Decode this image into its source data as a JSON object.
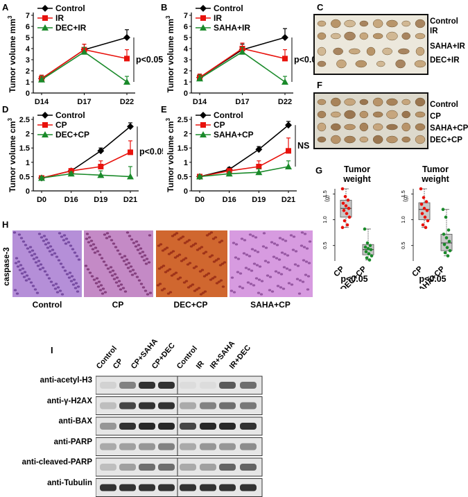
{
  "panels": {
    "A": {
      "letter": "A",
      "ylabel": "Tumor volume mm",
      "ylabel_sup": "3",
      "ptext": "p<0.05"
    },
    "B": {
      "letter": "B",
      "ylabel": "Tumor volume mm",
      "ylabel_sup": "3",
      "ptext": "p<0.05"
    },
    "C": {
      "letter": "C",
      "rows": [
        "Control",
        "IR",
        "SAHA+IR",
        "DEC+IR"
      ]
    },
    "D": {
      "letter": "D",
      "ylabel": "Tumor volume cm",
      "ylabel_sup": "3",
      "ptext": "p<0.05"
    },
    "E": {
      "letter": "E",
      "ylabel": "Tumor volume cm",
      "ylabel_sup": "3",
      "ptext": "NS"
    },
    "F": {
      "letter": "F",
      "rows": [
        "Control",
        "CP",
        "SAHA+CP",
        "DEC+CP"
      ]
    },
    "G": {
      "letter": "G",
      "title1": "Tumor",
      "title2": "weight",
      "unit": "(g)",
      "ptext": "p<0.05"
    },
    "H": {
      "letter": "H",
      "side_label": "caspase-3",
      "captions": [
        "Control",
        "CP",
        "DEC+CP",
        "SAHA+CP"
      ]
    },
    "I": {
      "letter": "I",
      "cols_left": [
        "Control",
        "CP",
        "CP+SAHA",
        "CP+DEC"
      ],
      "cols_right": [
        "Control",
        "IR",
        "IR+SAHA",
        "IR+DEC"
      ],
      "rows": [
        "anti-acetyl-H3",
        "anti-γ-H2AX",
        "anti-BAX",
        "anti-PARP",
        "anti-cleaved-PARP",
        "anti-Tubulin"
      ]
    }
  },
  "colors": {
    "control": "#000000",
    "treat": "#e8120c",
    "combo": "#1a8a2a",
    "box": "#c8c8c8"
  },
  "chart_data": [
    {
      "id": "A",
      "type": "line",
      "x": [
        "D14",
        "D17",
        "D22"
      ],
      "ylim": [
        0,
        7
      ],
      "yticks": [
        0,
        1,
        2,
        3,
        4,
        5,
        6,
        7
      ],
      "series": [
        {
          "name": "Control",
          "values": [
            1.3,
            3.9,
            5.0
          ],
          "err": [
            0.3,
            0.5,
            0.7
          ]
        },
        {
          "name": "IR",
          "values": [
            1.3,
            3.9,
            3.1
          ],
          "err": [
            0.3,
            0.5,
            0.8
          ]
        },
        {
          "name": "DEC+IR",
          "values": [
            1.2,
            3.7,
            1.0
          ],
          "err": [
            0.3,
            0.4,
            0.5
          ]
        }
      ]
    },
    {
      "id": "B",
      "type": "line",
      "x": [
        "D14",
        "D17",
        "D22"
      ],
      "ylim": [
        0,
        7
      ],
      "yticks": [
        0,
        1,
        2,
        3,
        4,
        5,
        6,
        7
      ],
      "series": [
        {
          "name": "Control",
          "values": [
            1.4,
            3.9,
            5.0
          ],
          "err": [
            0.3,
            0.5,
            0.8
          ]
        },
        {
          "name": "IR",
          "values": [
            1.4,
            4.0,
            3.1
          ],
          "err": [
            0.3,
            0.5,
            0.8
          ]
        },
        {
          "name": "SAHA+IR",
          "values": [
            1.3,
            3.7,
            1.0
          ],
          "err": [
            0.3,
            0.4,
            0.5
          ]
        }
      ]
    },
    {
      "id": "D",
      "type": "line",
      "x": [
        "D0",
        "D16",
        "D19",
        "D21"
      ],
      "ylim": [
        0,
        2.5
      ],
      "yticks": [
        0,
        0.5,
        1,
        1.5,
        2,
        2.5
      ],
      "yticklabels": [
        "0",
        "0.5",
        "1",
        "1.5",
        "2",
        "2.5"
      ],
      "series": [
        {
          "name": "Control",
          "values": [
            0.45,
            0.7,
            1.4,
            2.25
          ],
          "err": [
            0.05,
            0.07,
            0.1,
            0.13
          ]
        },
        {
          "name": "CP",
          "values": [
            0.45,
            0.7,
            0.85,
            1.35
          ],
          "err": [
            0.05,
            0.07,
            0.2,
            0.4
          ]
        },
        {
          "name": "DEC+CP",
          "values": [
            0.45,
            0.6,
            0.55,
            0.5
          ],
          "err": [
            0.05,
            0.06,
            0.15,
            0.35
          ]
        }
      ]
    },
    {
      "id": "E",
      "type": "line",
      "x": [
        "D0",
        "D16",
        "D19",
        "D21"
      ],
      "ylim": [
        0,
        2.5
      ],
      "yticks": [
        0,
        0.5,
        1,
        1.5,
        2,
        2.5
      ],
      "yticklabels": [
        "0",
        "0.5",
        "1",
        "1.5",
        "2",
        "2.5"
      ],
      "series": [
        {
          "name": "Control",
          "values": [
            0.5,
            0.75,
            1.45,
            2.3
          ],
          "err": [
            0.05,
            0.07,
            0.1,
            0.13
          ]
        },
        {
          "name": "CP",
          "values": [
            0.5,
            0.7,
            0.85,
            1.4
          ],
          "err": [
            0.05,
            0.07,
            0.2,
            0.45
          ]
        },
        {
          "name": "SAHA+CP",
          "values": [
            0.5,
            0.6,
            0.65,
            0.85
          ],
          "err": [
            0.05,
            0.06,
            0.12,
            0.2
          ]
        }
      ]
    },
    {
      "id": "G1",
      "type": "box",
      "categories": [
        "CP",
        "DEC+CP"
      ],
      "ylim": [
        0.2,
        1.6
      ],
      "yticks": [
        0.5,
        1.0,
        1.5
      ],
      "yticklabels": [
        "0.5",
        "1.0",
        "1.5"
      ],
      "groups": [
        {
          "name": "CP",
          "q1": 1.05,
          "median": 1.22,
          "q3": 1.38,
          "min": 0.85,
          "max": 1.6,
          "points": [
            1.6,
            1.45,
            1.38,
            1.32,
            1.27,
            1.22,
            1.18,
            1.12,
            1.05,
            0.98,
            0.9,
            0.85
          ]
        },
        {
          "name": "DEC+CP",
          "q1": 0.32,
          "median": 0.42,
          "q3": 0.52,
          "min": 0.22,
          "max": 0.82,
          "points": [
            0.82,
            0.55,
            0.5,
            0.47,
            0.44,
            0.42,
            0.38,
            0.34,
            0.3,
            0.26,
            0.22
          ]
        }
      ]
    },
    {
      "id": "G2",
      "type": "box",
      "categories": [
        "CP",
        "SAHA+CP"
      ],
      "ylim": [
        0.2,
        1.6
      ],
      "yticks": [
        0.5,
        1.0,
        1.5
      ],
      "yticklabels": [
        "0.5",
        "1.0",
        "1.5"
      ],
      "groups": [
        {
          "name": "CP",
          "q1": 1.0,
          "median": 1.2,
          "q3": 1.33,
          "min": 0.85,
          "max": 1.6,
          "points": [
            1.6,
            1.43,
            1.35,
            1.3,
            1.22,
            1.18,
            1.12,
            1.05,
            0.98,
            0.9,
            0.85
          ]
        },
        {
          "name": "SAHA+CP",
          "q1": 0.4,
          "median": 0.55,
          "q3": 0.72,
          "min": 0.3,
          "max": 1.2,
          "points": [
            1.2,
            1.05,
            0.8,
            0.72,
            0.65,
            0.58,
            0.52,
            0.46,
            0.4,
            0.36,
            0.3
          ]
        }
      ]
    }
  ]
}
